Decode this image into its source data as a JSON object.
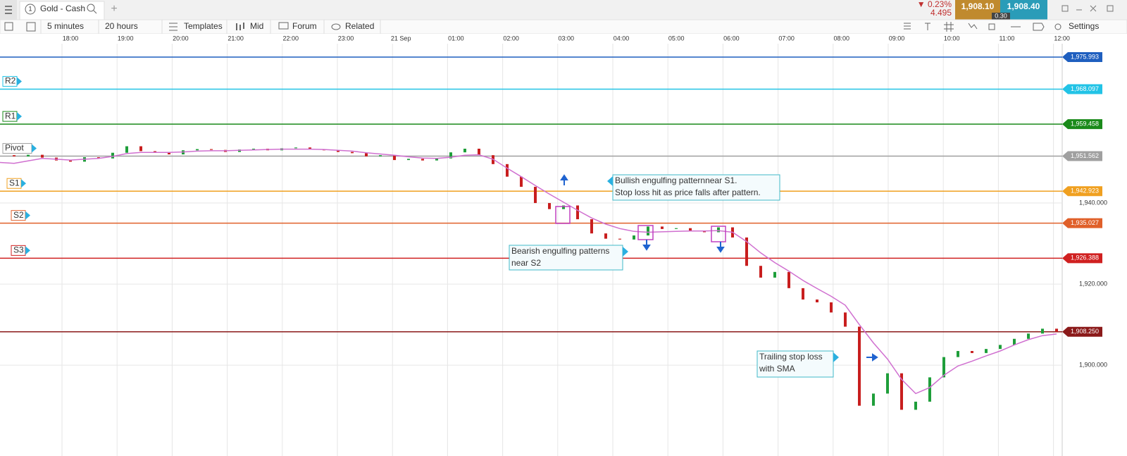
{
  "tab": {
    "number": "1",
    "title": "Gold - Cash"
  },
  "quote": {
    "change": "▼ 0.23%",
    "change_points": "4.495",
    "sell": "1,908.10",
    "spread": "0.30",
    "buy": "1,908.40"
  },
  "toolbar": {
    "interval": "5 minutes",
    "range": "20 hours",
    "templates": "Templates",
    "price_type": "Mid",
    "forum": "Forum",
    "related": "Related",
    "settings": "Settings"
  },
  "chart": {
    "time_labels": [
      "18:00",
      "19:00",
      "20:00",
      "21:00",
      "22:00",
      "23:00",
      "21 Sep",
      "01:00",
      "02:00",
      "03:00",
      "04:00",
      "05:00",
      "06:00",
      "07:00",
      "08:00",
      "09:00",
      "10:00",
      "11:00",
      "12:00"
    ],
    "ylim": [
      1877.6,
      1979.3
    ],
    "yticks": [
      {
        "value": 1940,
        "label": "1,940.000"
      },
      {
        "value": 1920,
        "label": "1,920.000"
      },
      {
        "value": 1900,
        "label": "1,900.000"
      }
    ],
    "levels": [
      {
        "value": 1975.993,
        "label": "1,975.993",
        "color": "#1f5fbf"
      },
      {
        "name": "R2",
        "value": 1968.097,
        "label": "1,968.097",
        "color": "#22c3e6"
      },
      {
        "name": "R1",
        "value": 1959.458,
        "label": "1,959.458",
        "color": "#1a8a1a"
      },
      {
        "name": "Pivot",
        "value": 1951.562,
        "label": "1,951.562",
        "color": "#a0a0a0"
      },
      {
        "name": "S1",
        "value": 1942.923,
        "label": "1,942.923",
        "color": "#f0a020"
      },
      {
        "name": "S2",
        "value": 1935.027,
        "label": "1,935.027",
        "color": "#e0602a"
      },
      {
        "name": "S3",
        "value": 1926.388,
        "label": "1,926.388",
        "color": "#d02020"
      }
    ],
    "current_price": {
      "value": 1908.25,
      "label": "1,908.250",
      "color": "#8b1a1a"
    },
    "closes": [
      1951.8,
      1951.5,
      1951.9,
      1951.2,
      1950.5,
      1950.2,
      1951.3,
      1951.0,
      1952.4,
      1954.0,
      1952.8,
      1952.5,
      1952.0,
      1953.0,
      1953.3,
      1953.1,
      1952.6,
      1953.2,
      1953.4,
      1953.0,
      1953.5,
      1953.7,
      1953.2,
      1953.0,
      1952.6,
      1952.3,
      1951.5,
      1951.8,
      1950.6,
      1950.9,
      1950.5,
      1951.0,
      1952.5,
      1953.4,
      1951.8,
      1949.6,
      1946.5,
      1944.0,
      1940.0,
      1938.5,
      1939.4,
      1936.0,
      1932.5,
      1931.2,
      1931.0,
      1932.0,
      1934.2,
      1933.6,
      1933.8,
      1933.2,
      1932.8,
      1934.0,
      1931.5,
      1924.5,
      1921.6,
      1923.0,
      1919.0,
      1916.2,
      1915.5,
      1913.0,
      1909.5,
      1890.0,
      1893.0,
      1898.0,
      1889.0,
      1891.0,
      1897.0,
      1902.0,
      1903.5,
      1903.0,
      1904.0,
      1905.0,
      1906.5,
      1907.8,
      1909.0,
      1908.25
    ],
    "sma": [
      1950.0,
      1949.8,
      1950.4,
      1951.0,
      1950.8,
      1950.6,
      1950.8,
      1951.0,
      1951.5,
      1952.2,
      1952.5,
      1952.5,
      1952.5,
      1952.6,
      1952.8,
      1952.9,
      1952.9,
      1953.0,
      1953.1,
      1953.2,
      1953.3,
      1953.3,
      1953.3,
      1953.2,
      1953.0,
      1952.8,
      1952.4,
      1952.1,
      1951.8,
      1951.4,
      1951.1,
      1951.0,
      1951.3,
      1951.8,
      1951.9,
      1950.8,
      1948.6,
      1946.5,
      1944.3,
      1942.2,
      1940.2,
      1938.2,
      1936.3,
      1934.8,
      1933.7,
      1933.0,
      1932.8,
      1932.9,
      1933.0,
      1933.1,
      1933.1,
      1933.2,
      1932.8,
      1930.5,
      1927.7,
      1925.3,
      1923.2,
      1920.9,
      1918.9,
      1917.0,
      1914.8,
      1910.0,
      1905.5,
      1901.5,
      1896.5,
      1893.0,
      1894.5,
      1897.5,
      1899.8,
      1901.0,
      1902.3,
      1903.5,
      1905.0,
      1906.3,
      1907.3,
      1907.7
    ],
    "sma_color": "#d070d0",
    "up_color": "#1e9e3a",
    "down_color": "#c81e1e",
    "annotations": [
      {
        "lines": [
          "Bullish engulfing patternnear S1.",
          "Stop loss hit as price falls after pattern."
        ]
      },
      {
        "lines": [
          "Bearish engulfing patterns",
          "near S2"
        ]
      },
      {
        "lines": [
          "Trailing stop loss",
          "with SMA"
        ]
      }
    ]
  }
}
